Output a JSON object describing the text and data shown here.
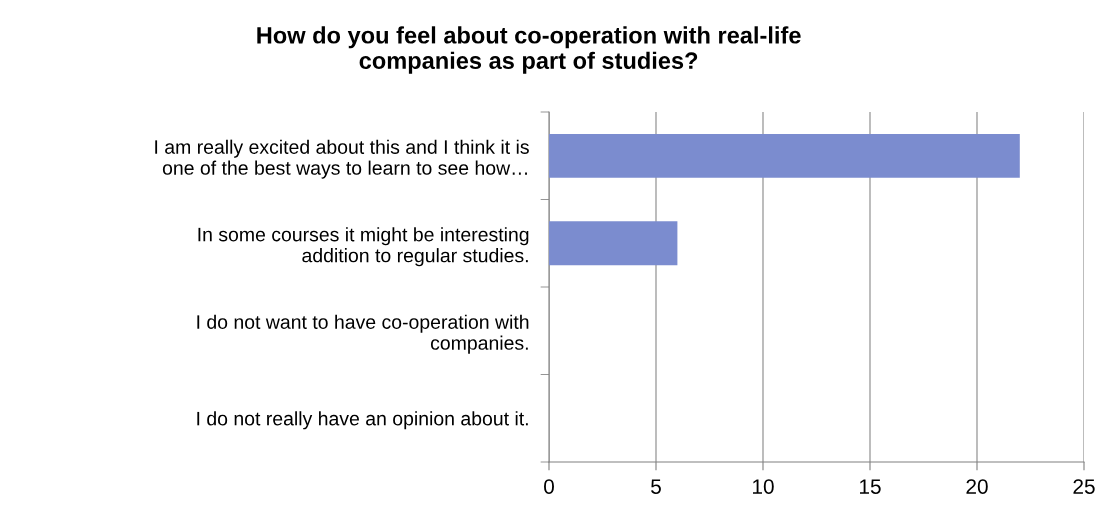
{
  "chart_data": {
    "type": "bar",
    "orientation": "horizontal",
    "title": "How do you feel about co-operation with real-life\ncompanies as part of studies?",
    "categories": [
      "I am really excited about this and I think it is\none of the best ways to learn to see how…",
      "In some courses it might be interesting\naddition to regular studies.",
      "I do not want to have co-operation with\ncompanies.",
      "I do not really have an opinion about it."
    ],
    "values": [
      22,
      6,
      0,
      0
    ],
    "color": "#7b8ccf",
    "xlim": [
      0,
      25
    ],
    "xticks": [
      0,
      5,
      10,
      15,
      20,
      25
    ],
    "grid": "x",
    "legend": false
  }
}
